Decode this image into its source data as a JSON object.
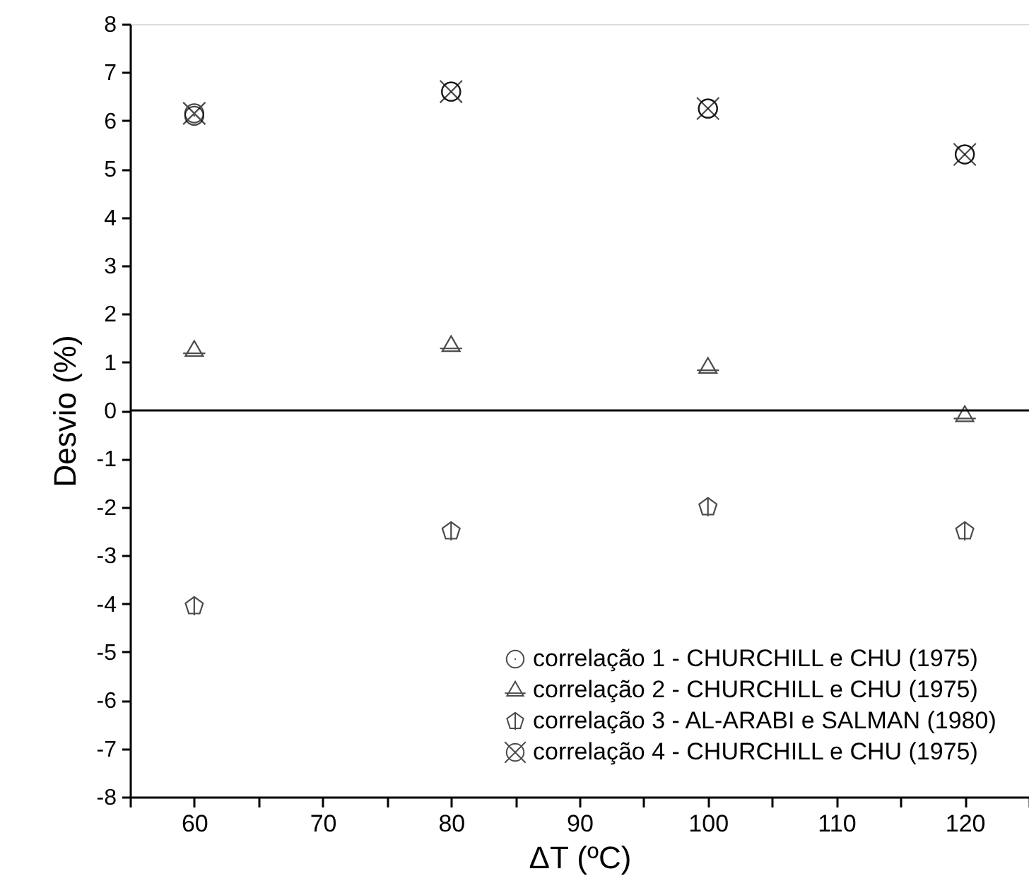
{
  "chart_data": {
    "type": "scatter",
    "xlabel": "ΔT (ºC)",
    "ylabel": "Desvio (%)",
    "x": [
      60,
      80,
      100,
      120
    ],
    "series": [
      {
        "name": "correlação 1 - CHURCHILL e CHU (1975)",
        "color": "#000000",
        "values": [
          6.1,
          6.6,
          6.25,
          5.3
        ]
      },
      {
        "name": "correlação 2 - CHURCHILL e CHU (1975)",
        "color": "#000000",
        "values": [
          1.25,
          1.35,
          0.9,
          -0.1
        ]
      },
      {
        "name": "correlação 3 - AL-ARABI e SALMAN (1980)",
        "color": "#000000",
        "values": [
          -4.05,
          -2.5,
          -2.0,
          -2.5
        ]
      },
      {
        "name": "correlação 4 - CHURCHILL e CHU (1975)",
        "color": "#000000",
        "values": [
          6.15,
          6.6,
          6.25,
          5.3
        ]
      }
    ],
    "xlim": [
      55,
      125
    ],
    "xticks": [
      {
        "value": 55,
        "label": null
      },
      60,
      {
        "value": 65,
        "label": null
      },
      70,
      {
        "value": 75,
        "label": null
      },
      80,
      {
        "value": 85,
        "label": null
      },
      90,
      {
        "value": 95,
        "label": null
      },
      100,
      {
        "value": 105,
        "label": null
      },
      110,
      {
        "value": 115,
        "label": null
      },
      120,
      {
        "value": 125,
        "label": null
      }
    ],
    "ylim": [
      -8,
      8
    ],
    "yticks": [
      -8,
      -7,
      -6,
      -5,
      -4,
      -3,
      -2,
      -1,
      0,
      1,
      2,
      3,
      4,
      5,
      6,
      7,
      8
    ],
    "ref_lines": [
      {
        "axis": "y",
        "value": 0,
        "color": "#000000"
      }
    ],
    "grid": false,
    "legend": "bottom right"
  }
}
